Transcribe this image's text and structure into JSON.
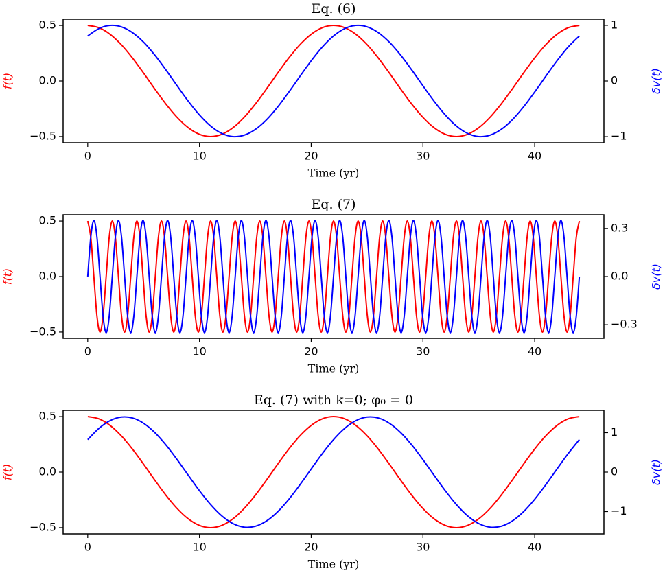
{
  "chart_data": [
    {
      "type": "line",
      "title": "Eq. (6)",
      "xlabel": "Time (yr)",
      "ylabel": "f(t)",
      "y2label": "δv(t)",
      "x": [
        0,
        1,
        2,
        3,
        4,
        5,
        6,
        7,
        8,
        9,
        10,
        11,
        12,
        13,
        14,
        15,
        16,
        17,
        18,
        19,
        20,
        21,
        22,
        23,
        24,
        25,
        26,
        27,
        28,
        29,
        30,
        31,
        32,
        33,
        34,
        35,
        36,
        37,
        38,
        39,
        40,
        41,
        42,
        43,
        44
      ],
      "xlim": [
        -2.2,
        46.2
      ],
      "xticks": [
        0,
        10,
        20,
        30,
        40
      ],
      "ylim": [
        -0.556,
        0.556
      ],
      "yticks": [
        {
          "value": -0.5,
          "label": "−0.5"
        },
        {
          "value": 0,
          "label": "0.0"
        },
        0.5
      ],
      "y2lim": [
        -1.11,
        1.11
      ],
      "y2ticks": [
        {
          "value": -1,
          "label": "−1"
        },
        0,
        1
      ],
      "series": [
        {
          "color": "#ff0000",
          "values": [
            0.5,
            0.4797,
            0.4206,
            0.3274,
            0.2077,
            0.0712,
            -0.0712,
            -0.2077,
            -0.3274,
            -0.4206,
            -0.4797,
            -0.5,
            -0.4797,
            -0.4206,
            -0.3274,
            -0.2077,
            -0.0712,
            0.0712,
            0.2077,
            0.3274,
            0.4206,
            0.4797,
            0.5,
            0.4797,
            0.4206,
            0.3274,
            0.2077,
            0.0712,
            -0.0712,
            -0.2077,
            -0.3274,
            -0.4206,
            -0.4797,
            -0.5,
            -0.4797,
            -0.4206,
            -0.3274,
            -0.2077,
            -0.0712,
            0.0712,
            0.2077,
            0.3274,
            0.4206,
            0.4797,
            0.5
          ]
        },
        {
          "color": "#0000ff",
          "axis": "y2",
          "values": [
            0.809,
            0.9418,
            0.9984,
            0.974,
            0.8708,
            0.6971,
            0.4667,
            0.1986,
            -0.0856,
            -0.3628,
            -0.6108,
            -0.809,
            -0.9418,
            -0.9984,
            -0.974,
            -0.8708,
            -0.6971,
            -0.4667,
            -0.1986,
            0.0856,
            0.3628,
            0.6108,
            0.809,
            0.9418,
            0.9984,
            0.974,
            0.8708,
            0.6971,
            0.4667,
            0.1986,
            -0.0856,
            -0.3628,
            -0.6108,
            -0.809,
            -0.9418,
            -0.9984,
            -0.974,
            -0.8708,
            -0.6971,
            -0.4667,
            -0.1986,
            0.0856,
            0.3628,
            0.6108,
            0.809
          ]
        }
      ]
    },
    {
      "type": "line",
      "title": "Eq. (7)",
      "xlabel": "Time (yr)",
      "ylabel": "f(t)",
      "y2label": "δv(t)",
      "x": [
        0,
        0.275,
        0.55,
        0.825,
        1.1,
        1.375,
        1.65,
        1.925,
        2.2,
        2.475,
        2.75,
        3.025,
        3.3,
        3.575,
        3.85,
        4.125,
        4.4,
        4.675,
        4.95,
        5.225,
        5.5,
        5.775,
        6.05,
        6.325,
        6.6,
        6.875,
        7.15,
        7.425,
        7.7,
        7.975,
        8.25,
        8.525,
        8.8,
        9.075,
        9.35,
        9.625,
        9.9,
        10.175,
        10.45,
        10.725,
        11,
        11.275,
        11.55,
        11.825,
        12.1,
        12.375,
        12.65,
        12.925,
        13.2,
        13.475,
        13.75,
        14.025,
        14.3,
        14.575,
        14.85,
        15.125,
        15.4,
        15.675,
        15.95,
        16.225,
        16.5,
        16.775,
        17.05,
        17.325,
        17.6,
        17.875,
        18.15,
        18.425,
        18.7,
        18.975,
        19.25,
        19.525,
        19.8,
        20.075,
        20.35,
        20.625,
        20.9,
        21.175,
        21.45,
        21.725,
        22,
        22.275,
        22.55,
        22.825,
        23.1,
        23.375,
        23.65,
        23.925,
        24.2,
        24.475,
        24.75,
        25.025,
        25.3,
        25.575,
        25.85,
        26.125,
        26.4,
        26.675,
        26.95,
        27.225,
        27.5,
        27.775,
        28.05,
        28.325,
        28.6,
        28.875,
        29.15,
        29.425,
        29.7,
        29.975,
        30.25,
        30.525,
        30.8,
        31.075,
        31.35,
        31.625,
        31.9,
        32.175,
        32.45,
        32.725,
        33,
        33.275,
        33.55,
        33.825,
        34.1,
        34.375,
        34.65,
        34.925,
        35.2,
        35.475,
        35.75,
        36.025,
        36.3,
        36.575,
        36.85,
        37.125,
        37.4,
        37.675,
        37.95,
        38.225,
        38.5,
        38.775,
        39.05,
        39.325,
        39.6,
        39.875,
        40.15,
        40.425,
        40.7,
        40.975,
        41.25,
        41.525,
        41.8,
        42.075,
        42.35,
        42.625,
        42.9,
        43.175,
        43.45,
        43.725,
        44
      ],
      "xlim": [
        -2.2,
        46.2
      ],
      "xticks": [
        0,
        10,
        20,
        30,
        40
      ],
      "ylim": [
        -0.556,
        0.556
      ],
      "yticks": [
        {
          "value": -0.5,
          "label": "−0.5"
        },
        {
          "value": 0,
          "label": "0.0"
        },
        0.5
      ],
      "y2lim": [
        -0.385,
        0.385
      ],
      "y2ticks": [
        {
          "value": -0.3,
          "label": "−0.3"
        },
        {
          "value": 0,
          "label": "0.0"
        },
        0.3
      ],
      "series": [
        {
          "color": "#ff0000",
          "values": [
            0.5,
            0.3536,
            0,
            -0.3536,
            -0.5,
            -0.3536,
            0,
            0.3536,
            0.5,
            0.3536,
            0,
            -0.3536,
            -0.5,
            -0.3536,
            0,
            0.3536,
            0.5,
            0.3536,
            0,
            -0.3536,
            -0.5,
            -0.3536,
            0,
            0.3536,
            0.5,
            0.3536,
            0,
            -0.3536,
            -0.5,
            -0.3536,
            0,
            0.3536,
            0.5,
            0.3536,
            0,
            -0.3536,
            -0.5,
            -0.3536,
            0,
            0.3536,
            0.5,
            0.3536,
            0,
            -0.3536,
            -0.5,
            -0.3536,
            0,
            0.3536,
            0.5,
            0.3536,
            0,
            -0.3536,
            -0.5,
            -0.3536,
            0,
            0.3536,
            0.5,
            0.3536,
            0,
            -0.3536,
            -0.5,
            -0.3536,
            0,
            0.3536,
            0.5,
            0.3536,
            0,
            -0.3536,
            -0.5,
            -0.3536,
            0,
            0.3536,
            0.5,
            0.3536,
            0,
            -0.3536,
            -0.5,
            -0.3536,
            0,
            0.3536,
            0.5,
            0.3536,
            0,
            -0.3536,
            -0.5,
            -0.3536,
            0,
            0.3536,
            0.5,
            0.3536,
            0,
            -0.3536,
            -0.5,
            -0.3536,
            0,
            0.3536,
            0.5,
            0.3536,
            0,
            -0.3536,
            -0.5,
            -0.3536,
            0,
            0.3536,
            0.5,
            0.3536,
            0,
            -0.3536,
            -0.5,
            -0.3536,
            0,
            0.3536,
            0.5,
            0.3536,
            0,
            -0.3536,
            -0.5,
            -0.3536,
            0,
            0.3536,
            0.5,
            0.3536,
            0,
            -0.3536,
            -0.5,
            -0.3536,
            0,
            0.3536,
            0.5,
            0.3536,
            0,
            -0.3536,
            -0.5,
            -0.3536,
            0,
            0.3536,
            0.5,
            0.3536,
            0,
            -0.3536,
            -0.5,
            -0.3536,
            0,
            0.3536,
            0.5,
            0.3536,
            0,
            -0.3536,
            -0.5,
            -0.3536,
            0,
            0.3536,
            0.5,
            0.3536,
            0,
            -0.3536,
            -0.5,
            -0.3536,
            0,
            0.3536,
            0.5
          ]
        },
        {
          "color": "#0000ff",
          "axis": "y2",
          "values": [
            0,
            0.2475,
            0.35,
            0.2475,
            0,
            -0.2475,
            -0.35,
            -0.2475,
            0,
            0.2475,
            0.35,
            0.2475,
            0,
            -0.2475,
            -0.35,
            -0.2475,
            0,
            0.2475,
            0.35,
            0.2475,
            0,
            -0.2475,
            -0.35,
            -0.2475,
            0,
            0.2475,
            0.35,
            0.2475,
            0,
            -0.2475,
            -0.35,
            -0.2475,
            0,
            0.2475,
            0.35,
            0.2475,
            0,
            -0.2475,
            -0.35,
            -0.2475,
            0,
            0.2475,
            0.35,
            0.2475,
            0,
            -0.2475,
            -0.35,
            -0.2475,
            0,
            0.2475,
            0.35,
            0.2475,
            0,
            -0.2475,
            -0.35,
            -0.2475,
            0,
            0.2475,
            0.35,
            0.2475,
            0,
            -0.2475,
            -0.35,
            -0.2475,
            0,
            0.2475,
            0.35,
            0.2475,
            0,
            -0.2475,
            -0.35,
            -0.2475,
            0,
            0.2475,
            0.35,
            0.2475,
            0,
            -0.2475,
            -0.35,
            -0.2475,
            0,
            0.2475,
            0.35,
            0.2475,
            0,
            -0.2475,
            -0.35,
            -0.2475,
            0,
            0.2475,
            0.35,
            0.2475,
            0,
            -0.2475,
            -0.35,
            -0.2475,
            0,
            0.2475,
            0.35,
            0.2475,
            0,
            -0.2475,
            -0.35,
            -0.2475,
            0,
            0.2475,
            0.35,
            0.2475,
            0,
            -0.2475,
            -0.35,
            -0.2475,
            0,
            0.2475,
            0.35,
            0.2475,
            0,
            -0.2475,
            -0.35,
            -0.2475,
            0,
            0.2475,
            0.35,
            0.2475,
            0,
            -0.2475,
            -0.35,
            -0.2475,
            0,
            0.2475,
            0.35,
            0.2475,
            0,
            -0.2475,
            -0.35,
            -0.2475,
            0,
            0.2475,
            0.35,
            0.2475,
            0,
            -0.2475,
            -0.35,
            -0.2475,
            0,
            0.2475,
            0.35,
            0.2475,
            0,
            -0.2475,
            -0.35,
            -0.2475,
            0,
            0.2475,
            0.35,
            0.2475,
            0,
            -0.2475,
            -0.35,
            -0.2475,
            0
          ]
        }
      ]
    },
    {
      "type": "line",
      "title": "Eq. (7) with k=0; φ₀ = 0",
      "xlabel": "Time (yr)",
      "ylabel": "f(t)",
      "y2label": "δv(t)",
      "x": [
        0,
        1,
        2,
        3,
        4,
        5,
        6,
        7,
        8,
        9,
        10,
        11,
        12,
        13,
        14,
        15,
        16,
        17,
        18,
        19,
        20,
        21,
        22,
        23,
        24,
        25,
        26,
        27,
        28,
        29,
        30,
        31,
        32,
        33,
        34,
        35,
        36,
        37,
        38,
        39,
        40,
        41,
        42,
        43,
        44
      ],
      "xlim": [
        -2.2,
        46.2
      ],
      "xticks": [
        0,
        10,
        20,
        30,
        40
      ],
      "ylim": [
        -0.556,
        0.556
      ],
      "yticks": [
        {
          "value": -0.5,
          "label": "−0.5"
        },
        {
          "value": 0,
          "label": "0.0"
        },
        0.5
      ],
      "y2lim": [
        -1.565,
        1.565
      ],
      "y2ticks": [
        {
          "value": -1,
          "label": "−1"
        },
        0,
        1
      ],
      "series": [
        {
          "color": "#ff0000",
          "values": [
            0.5,
            0.4797,
            0.4206,
            0.3274,
            0.2077,
            0.0712,
            -0.0712,
            -0.2077,
            -0.3274,
            -0.4206,
            -0.4797,
            -0.5,
            -0.4797,
            -0.4206,
            -0.3274,
            -0.2077,
            -0.0712,
            0.0712,
            0.2077,
            0.3274,
            0.4206,
            0.4797,
            0.5,
            0.4797,
            0.4206,
            0.3274,
            0.2077,
            0.0712,
            -0.0712,
            -0.2077,
            -0.3274,
            -0.4206,
            -0.4797,
            -0.5,
            -0.4797,
            -0.4206,
            -0.3274,
            -0.2077,
            -0.0712,
            0.0712,
            0.2077,
            0.3274,
            0.4206,
            0.4797,
            0.5
          ]
        },
        {
          "color": "#0000ff",
          "axis": "y2",
          "values": [
            0.8229,
            1.1088,
            1.3047,
            1.3948,
            1.3721,
            1.2382,
            1.0038,
            0.6882,
            0.3171,
            -0.0799,
            -0.4705,
            -0.8229,
            -1.1088,
            -1.3047,
            -1.3948,
            -1.3721,
            -1.2382,
            -1.0038,
            -0.6882,
            -0.3171,
            0.0799,
            0.4705,
            0.8229,
            1.1088,
            1.3047,
            1.3948,
            1.3721,
            1.2382,
            1.0038,
            0.6882,
            0.3171,
            -0.0799,
            -0.4705,
            -0.8229,
            -1.1088,
            -1.3047,
            -1.3948,
            -1.3721,
            -1.2382,
            -1.0038,
            -0.6882,
            -0.3171,
            0.0799,
            0.4705,
            0.8229
          ]
        }
      ]
    }
  ]
}
